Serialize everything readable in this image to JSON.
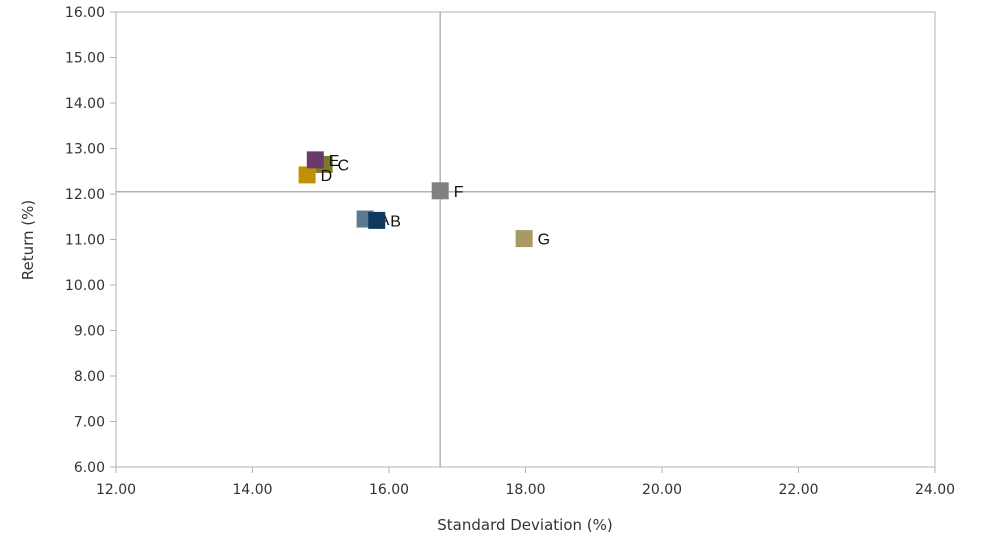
{
  "chart_data": {
    "type": "scatter",
    "title": "",
    "xlabel": "Standard Deviation (%)",
    "ylabel": "Return (%)",
    "xlim": [
      12,
      24
    ],
    "ylim": [
      6,
      16
    ],
    "xticks": [
      "12.00",
      "14.00",
      "16.00",
      "18.00",
      "20.00",
      "22.00",
      "24.00"
    ],
    "yticks": [
      "6.00",
      "7.00",
      "8.00",
      "9.00",
      "10.00",
      "11.00",
      "12.00",
      "13.00",
      "14.00",
      "15.00",
      "16.00"
    ],
    "grid": false,
    "legend": "none",
    "reference_lines": {
      "x": 16.75,
      "y": 12.05
    },
    "points": [
      {
        "label": "A",
        "x": 15.65,
        "y": 11.45,
        "color": "#5a7a8f"
      },
      {
        "label": "B",
        "x": 15.82,
        "y": 11.42,
        "color": "#0f3a5f"
      },
      {
        "label": "C",
        "x": 15.05,
        "y": 12.65,
        "color": "#7a7a2a"
      },
      {
        "label": "D",
        "x": 14.8,
        "y": 12.42,
        "color": "#c09000"
      },
      {
        "label": "E",
        "x": 14.92,
        "y": 12.75,
        "color": "#6a3a6a"
      },
      {
        "label": "F",
        "x": 16.75,
        "y": 12.07,
        "color": "#808080"
      },
      {
        "label": "G",
        "x": 17.98,
        "y": 11.02,
        "color": "#a89a66"
      }
    ]
  }
}
